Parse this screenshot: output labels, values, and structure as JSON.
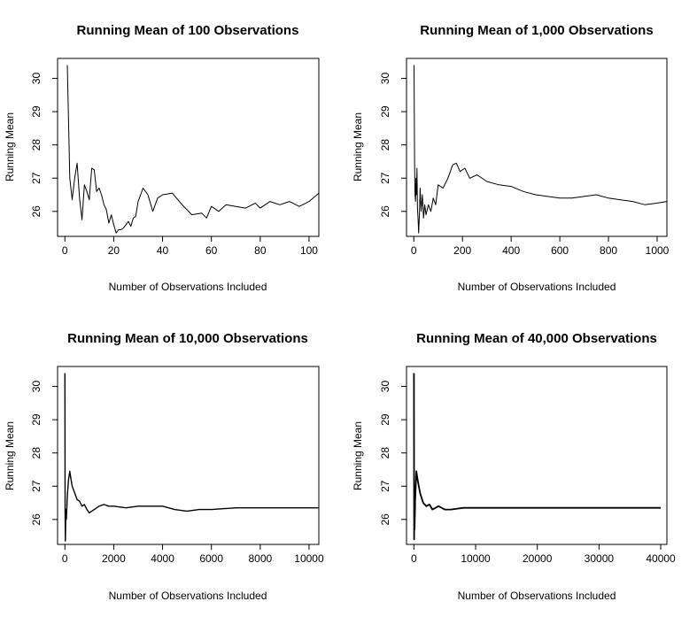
{
  "chart_data": [
    {
      "type": "line",
      "title": "Running Mean of 100 Observations",
      "xlabel": "Number of Observations Included",
      "ylabel": "Running Mean",
      "xlim": [
        -3,
        104
      ],
      "ylim": [
        25.25,
        30.6
      ],
      "xticks": [
        0,
        20,
        40,
        60,
        80,
        100
      ],
      "xtick_labels": [
        "0",
        "20",
        "40",
        "60",
        "80",
        "100"
      ],
      "yticks": [
        26,
        27,
        28,
        29,
        30
      ],
      "ytick_labels": [
        "26",
        "27",
        "28",
        "29",
        "30"
      ],
      "grid": false,
      "series": [
        {
          "x": [
            1,
            2,
            3,
            4,
            5,
            6,
            7,
            8,
            9,
            10,
            11,
            12,
            13,
            14,
            15,
            16,
            17,
            18,
            19,
            20,
            21,
            22,
            23,
            24,
            25,
            26,
            27,
            28,
            29,
            30,
            32,
            34,
            36,
            38,
            40,
            44,
            48,
            50,
            52,
            56,
            58,
            60,
            63,
            66,
            70,
            74,
            78,
            80,
            84,
            88,
            92,
            96,
            100,
            104
          ],
          "y": [
            30.4,
            27.0,
            26.35,
            27.0,
            27.45,
            26.4,
            25.75,
            26.8,
            26.6,
            26.35,
            27.3,
            27.25,
            26.6,
            26.7,
            26.5,
            26.2,
            26.05,
            25.65,
            25.9,
            25.6,
            25.35,
            25.45,
            25.45,
            25.5,
            25.6,
            25.7,
            25.55,
            25.8,
            25.85,
            26.3,
            26.7,
            26.5,
            26.0,
            26.4,
            26.5,
            26.55,
            26.2,
            26.05,
            25.9,
            25.95,
            25.8,
            26.15,
            26.0,
            26.2,
            26.15,
            26.1,
            26.25,
            26.1,
            26.3,
            26.2,
            26.3,
            26.15,
            26.3,
            26.55
          ]
        }
      ]
    },
    {
      "type": "line",
      "title": "Running Mean of 1,000 Observations",
      "xlabel": "Number of Observations Included",
      "ylabel": "Running Mean",
      "xlim": [
        -30,
        1040
      ],
      "ylim": [
        25.25,
        30.6
      ],
      "xticks": [
        0,
        200,
        400,
        600,
        800,
        1000
      ],
      "xtick_labels": [
        "0",
        "200",
        "400",
        "600",
        "800",
        "1000"
      ],
      "yticks": [
        26,
        27,
        28,
        29,
        30
      ],
      "ytick_labels": [
        "26",
        "27",
        "28",
        "29",
        "30"
      ],
      "grid": false,
      "series": [
        {
          "x": [
            1,
            3,
            5,
            7,
            9,
            11,
            13,
            15,
            18,
            20,
            23,
            26,
            30,
            35,
            40,
            45,
            50,
            60,
            70,
            80,
            90,
            100,
            120,
            140,
            160,
            175,
            190,
            210,
            230,
            260,
            300,
            350,
            400,
            450,
            500,
            550,
            600,
            650,
            700,
            750,
            800,
            850,
            900,
            950,
            1000,
            1040
          ],
          "y": [
            30.4,
            27.5,
            26.5,
            26.3,
            27.0,
            26.5,
            27.3,
            26.1,
            25.7,
            25.35,
            25.9,
            26.7,
            26.0,
            26.5,
            25.8,
            26.2,
            25.9,
            26.2,
            26.0,
            26.4,
            26.2,
            26.8,
            26.7,
            27.0,
            27.4,
            27.45,
            27.2,
            27.3,
            27.0,
            27.1,
            26.9,
            26.8,
            26.75,
            26.6,
            26.5,
            26.45,
            26.4,
            26.4,
            26.45,
            26.5,
            26.4,
            26.35,
            26.3,
            26.2,
            26.25,
            26.3
          ]
        }
      ]
    },
    {
      "type": "line",
      "title": "Running Mean of 10,000 Observations",
      "xlabel": "Number of Observations Included",
      "ylabel": "Running Mean",
      "xlim": [
        -300,
        10400
      ],
      "ylim": [
        25.25,
        30.6
      ],
      "xticks": [
        0,
        2000,
        4000,
        6000,
        8000,
        10000
      ],
      "xtick_labels": [
        "0",
        "2000",
        "4000",
        "6000",
        "8000",
        "10000"
      ],
      "yticks": [
        26,
        27,
        28,
        29,
        30
      ],
      "ytick_labels": [
        "26",
        "27",
        "28",
        "29",
        "30"
      ],
      "grid": false,
      "series": [
        {
          "x": [
            1,
            10,
            20,
            40,
            60,
            100,
            150,
            200,
            250,
            300,
            400,
            500,
            600,
            700,
            800,
            900,
            1000,
            1200,
            1400,
            1600,
            1800,
            2000,
            2500,
            3000,
            3500,
            4000,
            4500,
            5000,
            5500,
            6000,
            7000,
            8000,
            9000,
            10000,
            10400
          ],
          "y": [
            30.4,
            26.3,
            25.35,
            26.3,
            26.0,
            26.7,
            27.2,
            27.45,
            27.2,
            27.0,
            26.8,
            26.6,
            26.55,
            26.4,
            26.45,
            26.3,
            26.2,
            26.3,
            26.4,
            26.45,
            26.4,
            26.4,
            26.35,
            26.4,
            26.4,
            26.4,
            26.3,
            26.25,
            26.3,
            26.3,
            26.35,
            26.35,
            26.35,
            26.35,
            26.35
          ]
        }
      ]
    },
    {
      "type": "line",
      "title": "Running Mean of 40,000 Observations",
      "xlabel": "Number of Observations Included",
      "ylabel": "Running Mean",
      "xlim": [
        -1200,
        41000
      ],
      "ylim": [
        25.25,
        30.6
      ],
      "xticks": [
        0,
        10000,
        20000,
        30000,
        40000
      ],
      "xtick_labels": [
        "0",
        "10000",
        "20000",
        "30000",
        "40000"
      ],
      "yticks": [
        26,
        27,
        28,
        29,
        30
      ],
      "ytick_labels": [
        "26",
        "27",
        "28",
        "29",
        "30"
      ],
      "grid": false,
      "series": [
        {
          "x": [
            1,
            30,
            60,
            100,
            200,
            400,
            600,
            800,
            1000,
            1500,
            2000,
            2500,
            3000,
            4000,
            5000,
            6000,
            8000,
            10000,
            15000,
            20000,
            30000,
            40000
          ],
          "y": [
            30.4,
            25.4,
            26.3,
            25.7,
            26.6,
            27.45,
            27.2,
            27.0,
            26.8,
            26.5,
            26.4,
            26.45,
            26.3,
            26.4,
            26.3,
            26.3,
            26.35,
            26.35,
            26.35,
            26.35,
            26.35,
            26.35
          ]
        }
      ]
    }
  ]
}
